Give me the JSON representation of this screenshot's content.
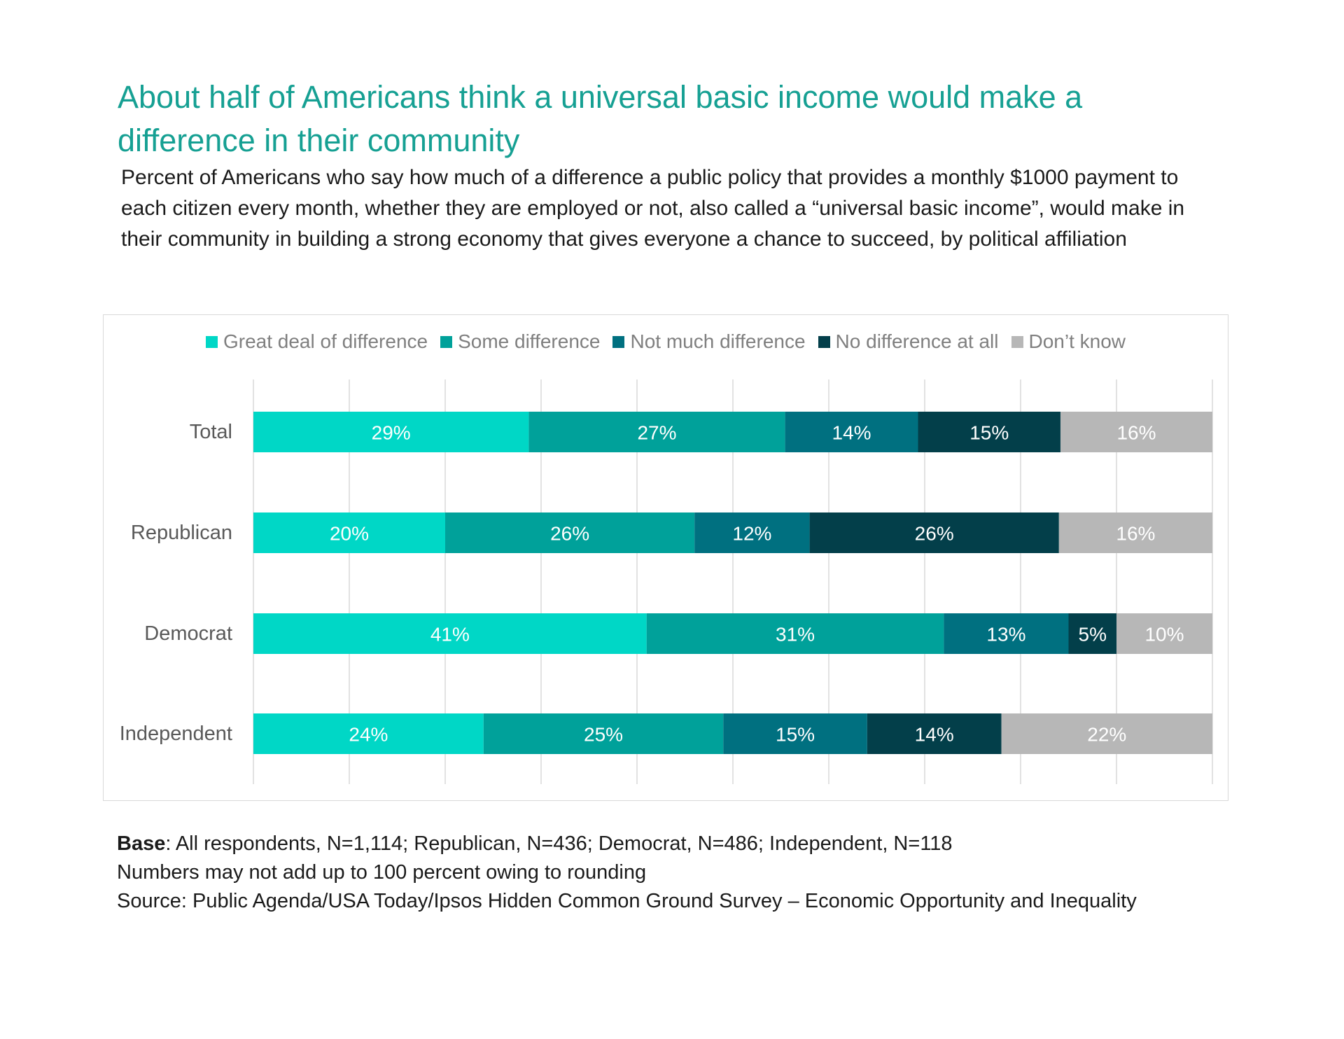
{
  "title": "About half of Americans think a universal basic income would make a difference in their community",
  "subtitle": "Percent of Americans who say how much of a difference a public policy that provides a monthly $1000 payment to each citizen every month, whether they are employed or not, also called a “universal basic income”, would make in their community in building a strong economy that gives everyone a chance to succeed, by political affiliation",
  "chart_data": {
    "type": "bar",
    "orientation": "horizontal",
    "stacked": true,
    "categories": [
      "Total",
      "Republican",
      "Democrat",
      "Independent"
    ],
    "series": [
      {
        "name": "Great deal of difference",
        "color": "#00d7c6",
        "values": [
          29,
          20,
          41,
          24
        ]
      },
      {
        "name": "Some difference",
        "color": "#00a19a",
        "values": [
          27,
          26,
          31,
          25
        ]
      },
      {
        "name": "Not much difference",
        "color": "#007080",
        "values": [
          14,
          12,
          13,
          15
        ]
      },
      {
        "name": "No difference at all",
        "color": "#033f4a",
        "values": [
          15,
          26,
          5,
          14
        ]
      },
      {
        "name": "Don’t know",
        "color": "#b7b7b7",
        "values": [
          16,
          16,
          10,
          22
        ]
      }
    ],
    "data_label_suffix": "%",
    "xlim": [
      0,
      100
    ],
    "grid": true,
    "legend_position": "top"
  },
  "notes": {
    "base_label": "Base",
    "base_text": ": All respondents, N=1,114; Republican, N=436; Democrat, N=486; Independent, N=118",
    "rounding_note": "Numbers may not add up to 100 percent owing to rounding",
    "source": "Source: Public Agenda/USA Today/Ipsos Hidden Common Ground Survey – Economic Opportunity and Inequality"
  }
}
